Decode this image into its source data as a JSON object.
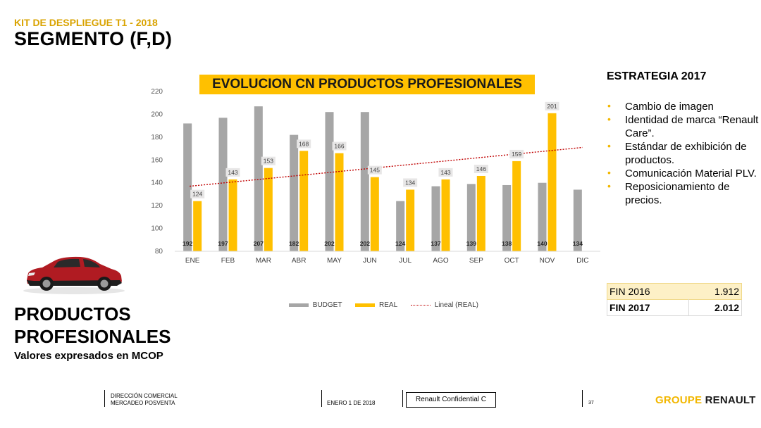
{
  "header": {
    "kit": "KIT DE DESPLIEGUE T1 - 2018",
    "segment": "SEGMENTO (F,D)"
  },
  "left": {
    "title_line1": "PRODUCTOS",
    "title_line2": "PROFESIONALES",
    "subtitle": "Valores expresados en MCOP"
  },
  "strategy": {
    "title": "ESTRATEGIA 2017",
    "items": [
      "Cambio de imagen",
      "Identidad de marca “Renault Care”.",
      "Estándar de exhibición de productos.",
      "Comunicación Material PLV.",
      "Reposicionamiento de precios."
    ]
  },
  "fin_table": [
    {
      "label": "FIN 2016",
      "value": "1.912"
    },
    {
      "label": "FIN 2017",
      "value": "2.012"
    }
  ],
  "footer": {
    "dept_line1": "DIRECCIÓN COMERCIAL",
    "dept_line2": "MERCADEO POSVENTA",
    "date": "ENERO 1 DE 2018",
    "confidential": "Renault Confidential C",
    "page": "37",
    "brand_part1": "GROUPE ",
    "brand_part2": "RENAULT"
  },
  "colors": {
    "budget": "#a6a6a6",
    "real": "#ffc000",
    "trend": "#c00000",
    "title_bg": "#ffc000"
  },
  "chart_data": {
    "type": "bar",
    "title": "EVOLUCION CN PRODUCTOS PROFESIONALES",
    "categories": [
      "ENE",
      "FEB",
      "MAR",
      "ABR",
      "MAY",
      "JUN",
      "JUL",
      "AGO",
      "SEP",
      "OCT",
      "NOV",
      "DIC"
    ],
    "series": [
      {
        "name": "BUDGET",
        "values": [
          192,
          197,
          207,
          182,
          202,
          202,
          124,
          137,
          139,
          138,
          140,
          134
        ],
        "labels": [
          "192",
          "197",
          "207",
          "182",
          "202",
          "202",
          "124",
          "137",
          "139",
          "138",
          "140",
          "134"
        ]
      },
      {
        "name": "REAL",
        "values": [
          124,
          143,
          153,
          168,
          166,
          145,
          134,
          143,
          146,
          159,
          201,
          null
        ],
        "labels": [
          "124",
          "143",
          "153",
          "168",
          "166",
          "145",
          "134",
          "143",
          "146",
          "159",
          "201",
          ""
        ]
      }
    ],
    "trendline": {
      "name": "Lineal (REAL)",
      "start": 137,
      "end": 171
    },
    "ylim": [
      80,
      220
    ],
    "yticks": [
      "80",
      "100",
      "120",
      "140",
      "160",
      "180",
      "200",
      "220"
    ],
    "grid": false,
    "legend": "bottom"
  }
}
